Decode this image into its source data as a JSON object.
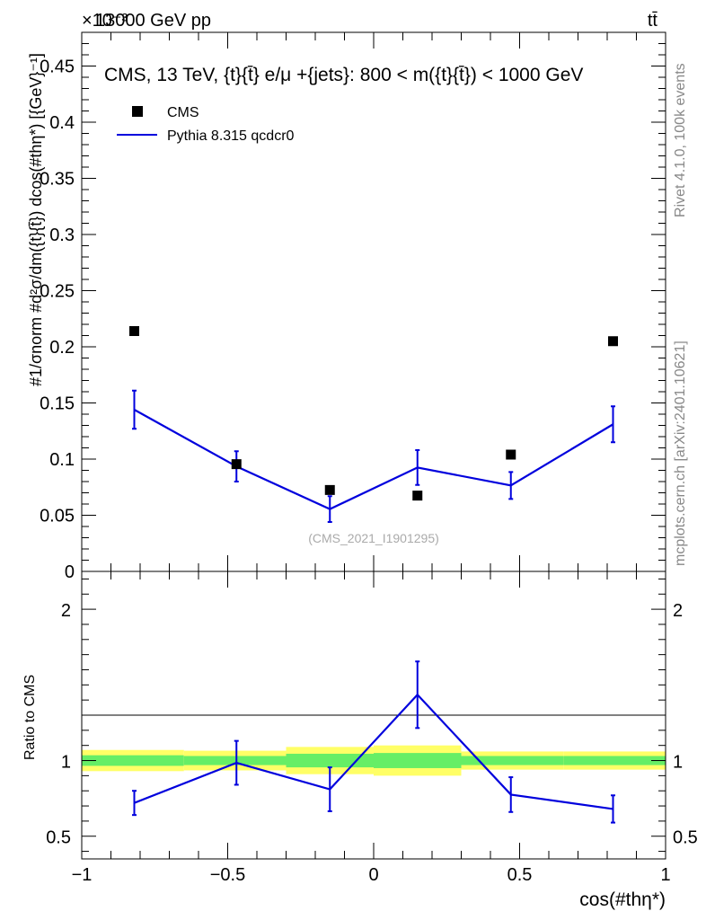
{
  "header": {
    "energy_label": "13000 GeV pp",
    "process_label": "tt̄",
    "exponent_label": "×10⁻³"
  },
  "side_labels": {
    "rivet": "Rivet 4.1.0,  100k events",
    "mcplots": "mcplots.cern.ch [arXiv:2401.10621]"
  },
  "colors": {
    "mc": "#0000dd",
    "data": "#000000",
    "band_inner": "#66ee66",
    "band_outer": "#ffff66"
  },
  "chart_data": [
    {
      "type": "scatter",
      "title": "CMS, 13 TeV, {t}{t̄} e/μ +{jets}: 800 < m({t}{t̄}) < 1000 GeV",
      "xlabel": "cos(#thη*)",
      "ylabel": "#1/σnorm #d²σ/dm({t}{t̄}) dcos(#thη*) [{GeV}⁻¹]",
      "reference": "(CMS_2021_I1901295)",
      "xlim": [
        -1,
        1
      ],
      "ylim": [
        0,
        0.00048
      ],
      "yticks": [
        0,
        0.05,
        0.1,
        0.15,
        0.2,
        0.25,
        0.3,
        0.35,
        0.4,
        0.45
      ],
      "yticklabels": [
        "0",
        "0.05",
        "0.1",
        "0.15",
        "0.2",
        "0.25",
        "0.3",
        "0.35",
        "0.4",
        "0.45"
      ],
      "legend": [
        {
          "name": "CMS",
          "style": "marker"
        },
        {
          "name": "Pythia 8.315 qcdcr0",
          "style": "line"
        }
      ],
      "series": [
        {
          "name": "CMS",
          "x": [
            -0.82,
            -0.47,
            -0.15,
            0.15,
            0.47,
            0.82
          ],
          "values": [
            0.000214,
            9.55e-05,
            7.25e-05,
            6.75e-05,
            0.000104,
            0.000205
          ]
        },
        {
          "name": "Pythia 8.315 qcdcr0",
          "x": [
            -0.82,
            -0.47,
            -0.15,
            0.15,
            0.47,
            0.82
          ],
          "values": [
            0.000144,
            9.35e-05,
            5.55e-05,
            9.25e-05,
            7.65e-05,
            0.000131
          ],
          "err": [
            1.7e-05,
            1.35e-05,
            1.15e-05,
            1.55e-05,
            1.2e-05,
            1.6e-05
          ]
        }
      ]
    },
    {
      "type": "line",
      "ylabel": "Ratio to CMS",
      "xlabel": "cos(#thη*)",
      "xlim": [
        -1,
        1
      ],
      "ylim": [
        0.35,
        2.25
      ],
      "yticks": [
        0.5,
        1,
        2
      ],
      "yticklabels": [
        "0.5",
        "1",
        "2"
      ],
      "xticks": [
        -1,
        -0.5,
        0,
        0.5,
        1
      ],
      "xticklabels": [
        "−1",
        "−0.5",
        "0",
        "0.5",
        "1"
      ],
      "bins": [
        -1,
        -0.65,
        -0.3,
        0,
        0.3,
        0.65,
        1
      ],
      "band_inner": [
        0.035,
        0.03,
        0.045,
        0.05,
        0.03,
        0.03
      ],
      "band_outer": [
        0.07,
        0.065,
        0.09,
        0.1,
        0.06,
        0.06
      ],
      "series": [
        {
          "name": "Pythia 8.315 qcdcr0",
          "x": [
            -0.82,
            -0.47,
            -0.15,
            0.15,
            0.47,
            0.82
          ],
          "values": [
            0.72,
            0.985,
            0.81,
            1.435,
            0.775,
            0.68
          ],
          "err": [
            0.08,
            0.145,
            0.145,
            0.22,
            0.115,
            0.09
          ]
        }
      ]
    }
  ]
}
